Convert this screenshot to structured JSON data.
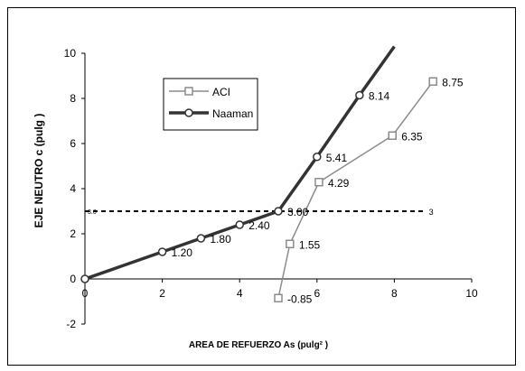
{
  "chart_data": {
    "type": "line",
    "title": "",
    "xlabel": "AREA DE REFUERZO  As (pulg² )",
    "ylabel": "EJE NEUTRO c (pulg )",
    "xlim": [
      0,
      10
    ],
    "ylim": [
      -2,
      10
    ],
    "x_ticks": [
      {
        "value": 0,
        "label": "0"
      },
      {
        "value": 2,
        "label": "2"
      },
      {
        "value": 4,
        "label": "4"
      },
      {
        "value": 6,
        "label": "6"
      },
      {
        "value": 8,
        "label": "8"
      },
      {
        "value": 10,
        "label": "10"
      }
    ],
    "y_ticks": [
      {
        "value": -2,
        "label": "-2"
      },
      {
        "value": 0,
        "label": "0"
      },
      {
        "value": 2,
        "label": "2"
      },
      {
        "value": 4,
        "label": "4"
      },
      {
        "value": 6,
        "label": "6"
      },
      {
        "value": 8,
        "label": "8"
      },
      {
        "value": 10,
        "label": "10"
      }
    ],
    "grid": false,
    "legend": {
      "placement": "upper-left",
      "entries": [
        {
          "name": "ACI",
          "color": "#8c8c8c",
          "marker": "square"
        },
        {
          "name": "Naaman",
          "color": "#333333",
          "marker": "circle"
        }
      ]
    },
    "series": [
      {
        "name": "ACI",
        "color": "#8c8c8c",
        "marker": "square",
        "line_width": "thin",
        "x": [
          5.0,
          5.3,
          6.05,
          7.95,
          9.0
        ],
        "y": [
          -0.85,
          1.55,
          4.29,
          6.35,
          8.75
        ],
        "marker_mask": [
          true,
          true,
          true,
          true,
          true
        ],
        "labels": [
          "-0.85",
          "1.55",
          "4.29",
          "6.35",
          "8.75"
        ]
      },
      {
        "name": "Naaman",
        "color": "#333333",
        "marker": "circle",
        "line_width": "thick",
        "x": [
          0,
          2,
          3,
          4,
          5,
          6,
          7.1,
          8
        ],
        "y": [
          0,
          1.2,
          1.8,
          2.4,
          3.0,
          5.41,
          8.14,
          10.3
        ],
        "marker_mask": [
          true,
          true,
          true,
          true,
          true,
          true,
          true,
          false
        ],
        "labels": [
          "",
          "1.20",
          "1.80",
          "2.40",
          "3.00",
          "5.41",
          "8.14",
          ""
        ]
      }
    ],
    "reference_line": {
      "style": "dashed",
      "y": 3,
      "x_start": 0,
      "x_end": 8.8,
      "start_label": "3.0",
      "end_label": "3"
    }
  }
}
